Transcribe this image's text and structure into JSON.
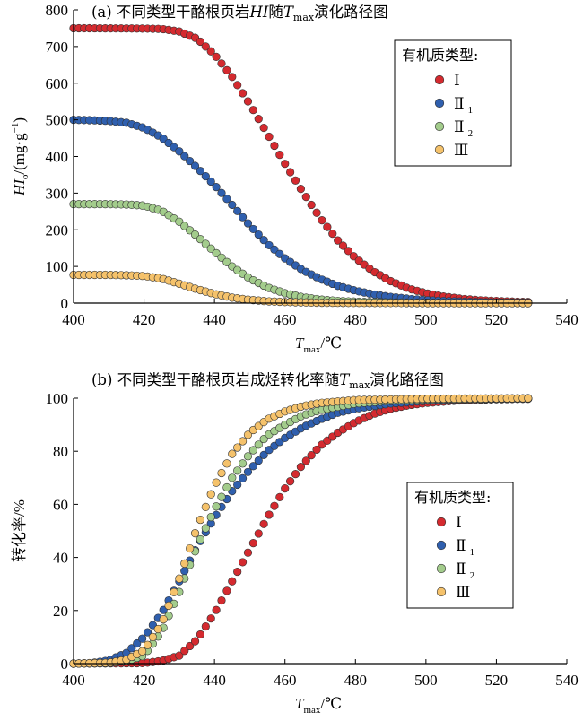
{
  "chart_data": [
    {
      "type": "scatter",
      "id": "a",
      "title_prefix": "(a) 不同类型干酪根页岩",
      "title_var": "HI",
      "title_mid": "随",
      "title_T": "T",
      "title_sub": "max",
      "title_suffix": "演化路径图",
      "ylabel_var": "HI",
      "ylabel_sub": "o",
      "ylabel_unit": "/(mg·g",
      "ylabel_sup": "−1",
      "ylabel_close": ")",
      "xlabel_T": "T",
      "xlabel_sub": "max",
      "xlabel_unit": "/℃",
      "xlim": [
        400,
        540
      ],
      "ylim": [
        0,
        800
      ],
      "xticks": [
        "400",
        "420",
        "440",
        "460",
        "480",
        "500",
        "520",
        "540"
      ],
      "yticks": [
        "0",
        "100",
        "200",
        "300",
        "400",
        "500",
        "600",
        "700",
        "800"
      ],
      "legend_title": "有机质类型:",
      "legend_position": "top-right",
      "x_range": [
        400,
        530
      ],
      "x_step": 1.5,
      "series": [
        {
          "name": "Ⅰ",
          "sub": "",
          "color": "#d42a2f",
          "curve": [
            [
              400,
              750
            ],
            [
              420,
              749
            ],
            [
              425,
              748
            ],
            [
              430,
              741
            ],
            [
              435,
              722
            ],
            [
              440,
              678
            ],
            [
              445,
              617
            ],
            [
              450,
              543
            ],
            [
              455,
              462
            ],
            [
              460,
              380
            ],
            [
              465,
              304
            ],
            [
              470,
              232
            ],
            [
              475,
              171
            ],
            [
              480,
              123
            ],
            [
              485,
              87
            ],
            [
              490,
              60
            ],
            [
              495,
              40
            ],
            [
              500,
              27
            ],
            [
              505,
              18
            ],
            [
              510,
              12
            ],
            [
              515,
              8
            ],
            [
              520,
              6
            ],
            [
              525,
              4
            ],
            [
              530,
              3
            ]
          ]
        },
        {
          "name": "Ⅱ",
          "sub": "1",
          "color": "#2f5fae",
          "curve": [
            [
              400,
              500
            ],
            [
              405,
              499
            ],
            [
              410,
              497
            ],
            [
              415,
              492
            ],
            [
              420,
              478
            ],
            [
              425,
              452
            ],
            [
              430,
              414
            ],
            [
              435,
              370
            ],
            [
              440,
              322
            ],
            [
              445,
              268
            ],
            [
              450,
              212
            ],
            [
              455,
              162
            ],
            [
              460,
              122
            ],
            [
              465,
              90
            ],
            [
              470,
              66
            ],
            [
              475,
              47
            ],
            [
              480,
              34
            ],
            [
              485,
              24
            ],
            [
              490,
              17
            ],
            [
              495,
              12
            ],
            [
              500,
              8
            ],
            [
              510,
              4
            ],
            [
              520,
              2
            ],
            [
              530,
              1
            ]
          ]
        },
        {
          "name": "Ⅱ",
          "sub": "2",
          "color": "#a3cc8c",
          "curve": [
            [
              400,
              270
            ],
            [
              410,
              270
            ],
            [
              415,
              269
            ],
            [
              420,
              266
            ],
            [
              425,
              252
            ],
            [
              430,
              222
            ],
            [
              435,
              183
            ],
            [
              440,
              140
            ],
            [
              445,
              100
            ],
            [
              450,
              67
            ],
            [
              455,
              43
            ],
            [
              460,
              27
            ],
            [
              465,
              16
            ],
            [
              470,
              10
            ],
            [
              475,
              6
            ],
            [
              480,
              4
            ],
            [
              490,
              2
            ],
            [
              500,
              1
            ],
            [
              510,
              0.5
            ],
            [
              530,
              0
            ]
          ]
        },
        {
          "name": "Ⅲ",
          "sub": "",
          "color": "#f5c26b",
          "curve": [
            [
              400,
              77
            ],
            [
              410,
              77
            ],
            [
              415,
              76
            ],
            [
              420,
              74
            ],
            [
              425,
              67
            ],
            [
              430,
              53
            ],
            [
              435,
              38
            ],
            [
              440,
              25
            ],
            [
              445,
              15
            ],
            [
              450,
              9
            ],
            [
              455,
              5
            ],
            [
              460,
              3
            ],
            [
              470,
              1
            ],
            [
              480,
              0.5
            ],
            [
              500,
              0
            ],
            [
              530,
              0
            ]
          ]
        }
      ]
    },
    {
      "type": "scatter",
      "id": "b",
      "title_prefix": "(b) 不同类型干酪根页岩成烃转化率随",
      "title_var": "",
      "title_mid": "",
      "title_T": "T",
      "title_sub": "max",
      "title_suffix": "演化路径图",
      "ylabel_text": "转化率/%",
      "xlabel_T": "T",
      "xlabel_sub": "max",
      "xlabel_unit": "/℃",
      "xlim": [
        400,
        540
      ],
      "ylim": [
        0,
        100
      ],
      "xticks": [
        "400",
        "420",
        "440",
        "460",
        "480",
        "500",
        "520",
        "540"
      ],
      "yticks": [
        "0",
        "20",
        "40",
        "60",
        "80",
        "100"
      ],
      "legend_title": "有机质类型:",
      "legend_position": "center-right",
      "x_range": [
        400,
        530
      ],
      "x_step": 1.5,
      "series": [
        {
          "name": "Ⅰ",
          "sub": "",
          "color": "#d42a2f",
          "curve": [
            [
              400,
              0
            ],
            [
              420,
              0.2
            ],
            [
              425,
              1
            ],
            [
              430,
              3
            ],
            [
              435,
              9
            ],
            [
              440,
              19
            ],
            [
              445,
              31
            ],
            [
              450,
              43
            ],
            [
              455,
              55
            ],
            [
              460,
              66
            ],
            [
              465,
              75
            ],
            [
              470,
              82
            ],
            [
              475,
              87
            ],
            [
              480,
              91
            ],
            [
              485,
              94
            ],
            [
              490,
              96
            ],
            [
              495,
              97.3
            ],
            [
              500,
              98.2
            ],
            [
              510,
              99.2
            ],
            [
              520,
              99.6
            ],
            [
              530,
              99.8
            ]
          ]
        },
        {
          "name": "Ⅱ",
          "sub": "1",
          "color": "#2f5fae",
          "curve": [
            [
              400,
              0
            ],
            [
              405,
              0.2
            ],
            [
              410,
              1.2
            ],
            [
              415,
              4
            ],
            [
              420,
              10
            ],
            [
              425,
              19
            ],
            [
              430,
              31
            ],
            [
              435,
              44
            ],
            [
              440,
              55
            ],
            [
              445,
              65
            ],
            [
              450,
              73
            ],
            [
              455,
              80
            ],
            [
              460,
              85
            ],
            [
              465,
              89
            ],
            [
              470,
              92
            ],
            [
              475,
              94.5
            ],
            [
              480,
              96
            ],
            [
              490,
              98
            ],
            [
              500,
              99
            ],
            [
              510,
              99.5
            ],
            [
              530,
              99.8
            ]
          ]
        },
        {
          "name": "Ⅱ",
          "sub": "2",
          "color": "#a3cc8c",
          "curve": [
            [
              400,
              0
            ],
            [
              410,
              0.2
            ],
            [
              415,
              1
            ],
            [
              420,
              3
            ],
            [
              425,
              12
            ],
            [
              430,
              27
            ],
            [
              435,
              44
            ],
            [
              440,
              58
            ],
            [
              445,
              70
            ],
            [
              450,
              79
            ],
            [
              455,
              86
            ],
            [
              460,
              90
            ],
            [
              465,
              93.5
            ],
            [
              470,
              95.5
            ],
            [
              480,
              98
            ],
            [
              490,
              99
            ],
            [
              500,
              99.5
            ],
            [
              530,
              99.9
            ]
          ]
        },
        {
          "name": "Ⅲ",
          "sub": "",
          "color": "#f5c26b",
          "curve": [
            [
              400,
              0
            ],
            [
              410,
              0.3
            ],
            [
              415,
              1.5
            ],
            [
              420,
              5
            ],
            [
              425,
              15
            ],
            [
              430,
              32
            ],
            [
              435,
              51
            ],
            [
              440,
              67
            ],
            [
              445,
              79
            ],
            [
              450,
              87
            ],
            [
              455,
              92
            ],
            [
              460,
              95
            ],
            [
              465,
              97
            ],
            [
              470,
              98.2
            ],
            [
              480,
              99.3
            ],
            [
              500,
              99.8
            ],
            [
              530,
              100
            ]
          ]
        }
      ]
    }
  ]
}
